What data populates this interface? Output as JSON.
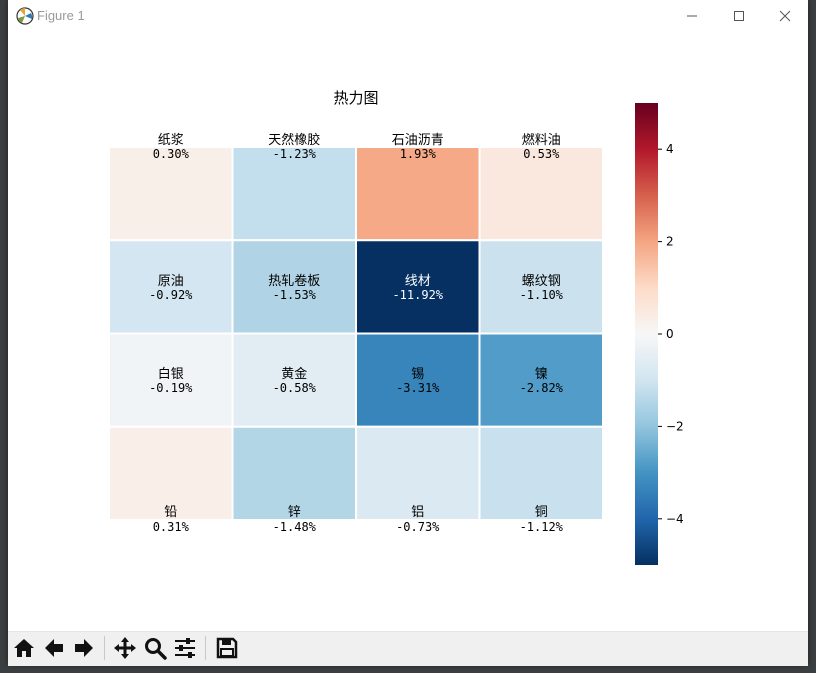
{
  "window": {
    "title": "Figure 1",
    "icons": {
      "app": "matplotlib-icon",
      "minimize": "minimize-icon",
      "maximize": "maximize-icon",
      "close": "close-icon"
    }
  },
  "toolbar": {
    "buttons": [
      {
        "name": "home",
        "icon": "home-icon"
      },
      {
        "name": "back",
        "icon": "arrow-left-icon"
      },
      {
        "name": "forward",
        "icon": "arrow-right-icon"
      },
      {
        "name": "pan",
        "icon": "move-icon"
      },
      {
        "name": "zoom",
        "icon": "zoom-icon"
      },
      {
        "name": "configure-subplots",
        "icon": "sliders-icon"
      },
      {
        "name": "save",
        "icon": "save-icon"
      }
    ]
  },
  "chart_data": {
    "type": "heatmap",
    "title": "热力图",
    "rows": 4,
    "cols": 4,
    "cells": [
      [
        {
          "name": "纸浆",
          "value": 0.3,
          "label": "0.30%"
        },
        {
          "name": "天然橡胶",
          "value": -1.23,
          "label": "-1.23%"
        },
        {
          "name": "石油沥青",
          "value": 1.93,
          "label": "1.93%"
        },
        {
          "name": "燃料油",
          "value": 0.53,
          "label": "0.53%"
        }
      ],
      [
        {
          "name": "原油",
          "value": -0.92,
          "label": "-0.92%"
        },
        {
          "name": "热轧卷板",
          "value": -1.53,
          "label": "-1.53%"
        },
        {
          "name": "线材",
          "value": -11.92,
          "label": "-11.92%"
        },
        {
          "name": "螺纹钢",
          "value": -1.1,
          "label": "-1.10%"
        }
      ],
      [
        {
          "name": "白银",
          "value": -0.19,
          "label": "-0.19%"
        },
        {
          "name": "黄金",
          "value": -0.58,
          "label": "-0.58%"
        },
        {
          "name": "锡",
          "value": -3.31,
          "label": "-3.31%"
        },
        {
          "name": "镍",
          "value": -2.82,
          "label": "-2.82%"
        }
      ],
      [
        {
          "name": "铅",
          "value": 0.31,
          "label": "0.31%"
        },
        {
          "name": "锌",
          "value": -1.48,
          "label": "-1.48%"
        },
        {
          "name": "铝",
          "value": -0.73,
          "label": "-0.73%"
        },
        {
          "name": "铜",
          "value": -1.12,
          "label": "-1.12%"
        }
      ]
    ],
    "colormap": "RdBu_r",
    "vmin": -5,
    "vmax": 5,
    "colorbar_ticks": [
      4,
      2,
      0,
      -2,
      -4
    ],
    "colorbar_tick_labels": [
      "4",
      "2",
      "0",
      "−2",
      "−4"
    ],
    "grid_color": "#ffffff",
    "grid": true
  }
}
